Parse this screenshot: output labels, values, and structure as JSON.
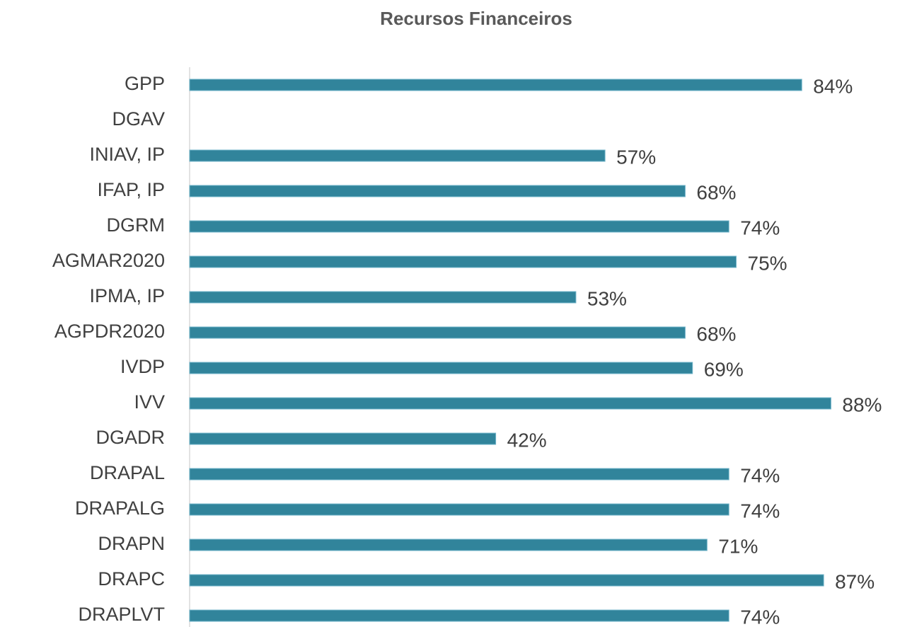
{
  "chart_data": {
    "type": "bar",
    "orientation": "horizontal",
    "title": "Recursos Financeiros",
    "categories": [
      "GPP",
      "DGAV",
      "INIAV, IP",
      "IFAP, IP",
      "DGRM",
      "AGMAR2020",
      "IPMA, IP",
      "AGPDR2020",
      "IVDP",
      "IVV",
      "DGADR",
      "DRAPAL",
      "DRAPALG",
      "DRAPN",
      "DRAPC",
      "DRAPLVT"
    ],
    "values": [
      84,
      null,
      57,
      68,
      74,
      75,
      53,
      68,
      69,
      88,
      42,
      74,
      74,
      71,
      87,
      74
    ],
    "value_labels": [
      "84%",
      null,
      "57%",
      "68%",
      "74%",
      "75%",
      "53%",
      "68%",
      "69%",
      "88%",
      "42%",
      "74%",
      "74%",
      "71%",
      "87%",
      "74%"
    ],
    "color": "#31849b",
    "xlim": [
      0,
      100
    ]
  }
}
